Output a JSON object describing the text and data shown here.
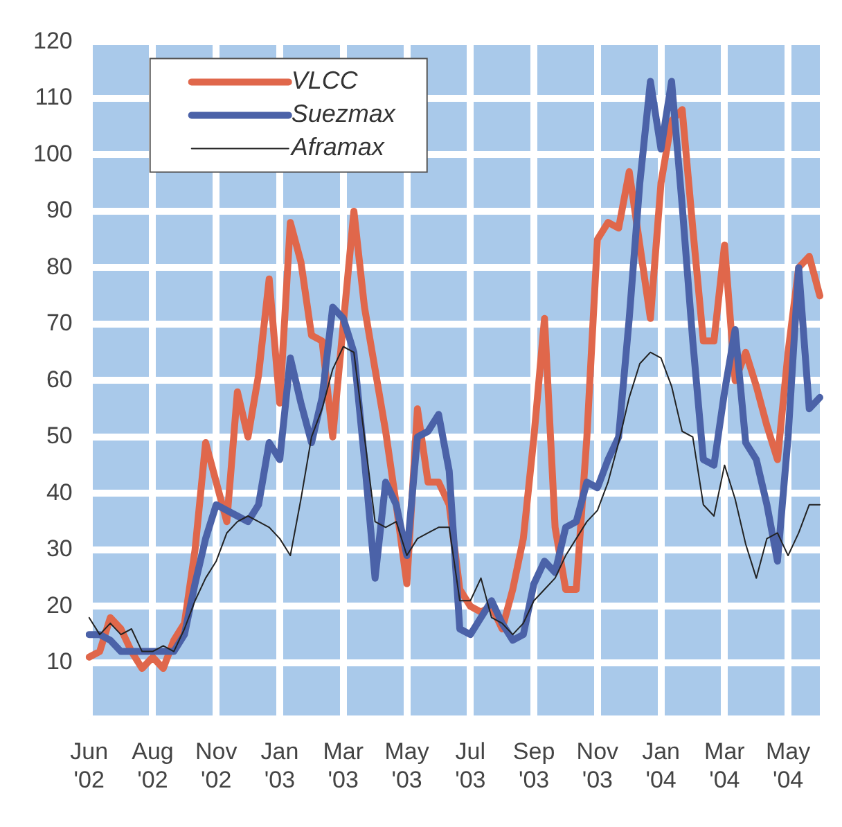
{
  "chart_data": {
    "type": "line",
    "categories": [
      "Jun '02",
      null,
      null,
      null,
      null,
      null,
      "Aug '02",
      null,
      null,
      null,
      null,
      null,
      "Nov '02",
      null,
      null,
      null,
      null,
      null,
      "Jan '03",
      null,
      null,
      null,
      null,
      null,
      "Mar '03",
      null,
      null,
      null,
      null,
      null,
      "May '03",
      null,
      null,
      null,
      null,
      null,
      "Jul '03",
      null,
      null,
      null,
      null,
      null,
      "Sep '03",
      null,
      null,
      null,
      null,
      null,
      "Nov '03",
      null,
      null,
      null,
      null,
      null,
      "Jan '04",
      null,
      null,
      null,
      null,
      null,
      "Mar '04",
      null,
      null,
      null,
      null,
      null,
      "May '04",
      null,
      null,
      null
    ],
    "series": [
      {
        "name": "VLCC",
        "color": "#e0674b",
        "values": [
          11,
          12,
          18,
          16,
          12,
          9,
          11,
          9,
          14,
          17,
          30,
          49,
          42,
          35,
          58,
          50,
          61,
          78,
          56,
          88,
          81,
          68,
          67,
          50,
          70,
          90,
          73,
          62,
          51,
          38,
          24,
          55,
          42,
          42,
          38,
          23,
          20,
          19,
          20,
          16,
          23,
          32,
          50,
          71,
          34,
          23,
          23,
          50,
          85,
          88,
          87,
          97,
          84,
          71,
          95,
          106,
          108,
          87,
          67,
          67,
          84,
          60,
          65,
          59,
          52,
          46,
          65,
          80,
          82,
          75
        ]
      },
      {
        "name": "Suezmax",
        "color": "#4b62a8",
        "values": [
          15,
          15,
          14,
          12,
          12,
          12,
          12,
          12,
          12,
          15,
          24,
          32,
          38,
          37,
          36,
          35,
          38,
          49,
          46,
          64,
          56,
          49,
          57,
          73,
          71,
          65,
          46,
          25,
          42,
          38,
          29,
          50,
          51,
          54,
          44,
          16,
          15,
          18,
          21,
          17,
          14,
          15,
          24,
          28,
          26,
          34,
          35,
          42,
          41,
          46,
          50,
          71,
          95,
          113,
          101,
          113,
          91,
          67,
          46,
          45,
          58,
          69,
          49,
          46,
          38,
          28,
          50,
          80,
          55,
          57
        ]
      },
      {
        "name": "Aframax",
        "color": "#222222",
        "type": "line",
        "values": [
          18,
          15,
          17,
          15,
          16,
          12,
          12,
          13,
          12,
          16,
          21,
          25,
          28,
          33,
          35,
          36,
          35,
          34,
          32,
          29,
          39,
          50,
          55,
          62,
          66,
          65,
          50,
          35,
          34,
          35,
          29,
          32,
          33,
          34,
          34,
          21,
          21,
          25,
          18,
          17,
          15,
          17,
          21,
          23,
          25,
          29,
          32,
          35,
          37,
          42,
          49,
          57,
          63,
          65,
          64,
          59,
          51,
          50,
          38,
          36,
          45,
          39,
          31,
          25,
          32,
          33,
          29,
          33,
          38,
          38
        ]
      }
    ],
    "ylim": [
      0,
      120
    ],
    "yticks": [
      {
        "value": 0,
        "label": null
      },
      10,
      20,
      30,
      40,
      50,
      60,
      70,
      80,
      90,
      100,
      110,
      120
    ],
    "grid": true,
    "legend": "top left",
    "marker": "none",
    "line_style": "solid"
  }
}
